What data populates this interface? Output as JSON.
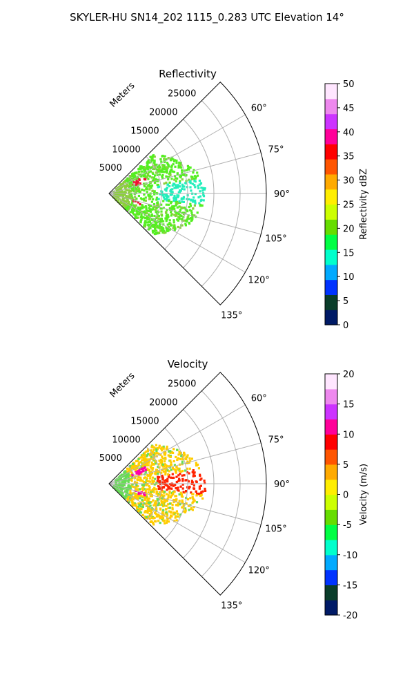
{
  "figure_title": "SKYLER-HU  SN14_202  1115_0.283 UTC Elevation 14°",
  "chart_data": [
    {
      "type": "polar-sector",
      "title": "Reflectivity",
      "radial_label": "Meters",
      "radial_ticks": [
        "5000",
        "10000",
        "15000",
        "20000",
        "25000"
      ],
      "radial_tick_values": [
        5000,
        10000,
        15000,
        20000,
        25000
      ],
      "rlim": [
        0,
        30000
      ],
      "angle_ticks": [
        "60°",
        "75°",
        "90°",
        "105°",
        "120°",
        "135°"
      ],
      "angle_tick_values": [
        60,
        75,
        90,
        105,
        120,
        135
      ],
      "theta_range": [
        45,
        135
      ],
      "grid": true,
      "colorbar": {
        "label": "Reflectivity dBZ",
        "ticks": [
          "0",
          "5",
          "10",
          "15",
          "20",
          "25",
          "30",
          "35",
          "40",
          "45",
          "50"
        ],
        "range": [
          0,
          50
        ],
        "stops": [
          "#001a66",
          "#0a3d2a",
          "#0033ff",
          "#00aaff",
          "#00ffcc",
          "#00ff44",
          "#66dd00",
          "#ccff00",
          "#ffee00",
          "#ffaa00",
          "#ff5500",
          "#ff0000",
          "#ff0099",
          "#cc33ff",
          "#ee88ee",
          "#ffe6ff"
        ]
      },
      "field_colors": {
        "near": "#8ccf3c",
        "core": "#55ee22",
        "edge": "#22eebb",
        "cell": "#ee1133"
      }
    },
    {
      "type": "polar-sector",
      "title": "Velocity",
      "radial_label": "Meters",
      "radial_ticks": [
        "5000",
        "10000",
        "15000",
        "20000",
        "25000"
      ],
      "radial_tick_values": [
        5000,
        10000,
        15000,
        20000,
        25000
      ],
      "rlim": [
        0,
        30000
      ],
      "angle_ticks": [
        "60°",
        "75°",
        "90°",
        "105°",
        "120°",
        "135°"
      ],
      "angle_tick_values": [
        60,
        75,
        90,
        105,
        120,
        135
      ],
      "theta_range": [
        45,
        135
      ],
      "grid": true,
      "colorbar": {
        "label": "Velocity (m/s)",
        "ticks": [
          "-20",
          "-15",
          "-10",
          "-5",
          "0",
          "5",
          "10",
          "15",
          "20"
        ],
        "range": [
          -20,
          20
        ],
        "stops": [
          "#001a66",
          "#0a3d2a",
          "#0033ff",
          "#00aaff",
          "#00ffcc",
          "#00ff44",
          "#66dd00",
          "#ccff00",
          "#ffee00",
          "#ffaa00",
          "#ff5500",
          "#ff0000",
          "#ff0099",
          "#cc33ff",
          "#ee88ee",
          "#ffe6ff"
        ]
      },
      "field_colors": {
        "near": "#66dd55",
        "core": "#ffcc00",
        "edge": "#ff2200",
        "cell": "#ff00aa"
      }
    }
  ]
}
